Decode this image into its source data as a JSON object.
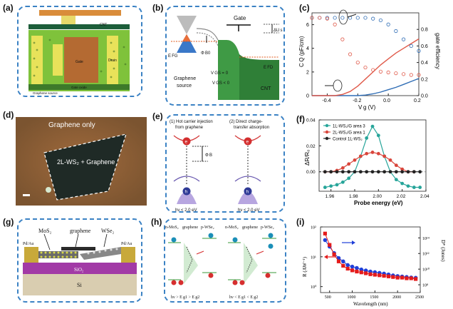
{
  "panels": {
    "a": {
      "label": "(a)",
      "cnt": "CNT",
      "gate": "Gate",
      "drain": "Drain",
      "gate_oxide": "Gate oxide",
      "graphene_source": "Graphene source"
    },
    "b": {
      "label": "(b)",
      "gate": "Gate",
      "efg": "E FG",
      "phi_b0": "Φ B0",
      "du": "ΔU s",
      "efd": "E FD",
      "vgs0": "V GS = 0",
      "vgs_neg": "V GS < 0",
      "graphene": "Graphene",
      "source": "source",
      "cnt": "CNT"
    },
    "c": {
      "label": "(c)"
    },
    "d": {
      "label": "(d)",
      "graphene_only": "Graphene only",
      "region": "2L-WS₂ + Graphene"
    },
    "e": {
      "label": "(e)",
      "mech1_line1": "(1) Hot carrier injection",
      "mech1_line2": "from graphene",
      "mech2_line1": "(2) Direct charge-",
      "mech2_line2": "transfer absorption",
      "phi_b": "Φ B",
      "hv1": "hν < 2.0 eV",
      "hv2": "hν < 2.0 eV",
      "e_char": "e",
      "h_char": "h"
    },
    "f": {
      "label": "(f)"
    },
    "g": {
      "label": "(g)",
      "mos2": "MoS₂",
      "graphene": "graphene",
      "wse2": "WSe₂",
      "pd_au_left": "Pd/Au",
      "pd_au_right": "Pd/Au",
      "sio2": "SiO₂",
      "si": "Si"
    },
    "h": {
      "label": "(h)",
      "l1": "n-MoS₂",
      "l2": "graphene",
      "l3": "p-WSe₂",
      "r1": "n-MoS₂",
      "r2": "graphene",
      "r3": "p-WSe₂",
      "eq1": "hν > E g1 > E g2",
      "eq2": "hν < E g1 < E g2"
    },
    "i": {
      "label": "(i)"
    }
  },
  "chart_data": [
    {
      "id": "c",
      "type": "scatter",
      "xlabel": "V g (V)",
      "ylabel": "C Q (pF/cm)",
      "y2label": "gate efficiency",
      "xlim": [
        -0.5,
        0.2
      ],
      "ylim": [
        0,
        7
      ],
      "y2lim": [
        0,
        1.0
      ],
      "xticks": [
        "-0.4",
        "-0.2",
        "0.0",
        "0.2"
      ],
      "yticks": [
        "0",
        "2",
        "4",
        "6"
      ],
      "y2ticks": [
        "0.0",
        "0.2",
        "0.4",
        "0.6",
        "0.8"
      ],
      "series": [
        {
          "color": "#2f6db5",
          "axis": "left",
          "x": [
            -0.5,
            -0.45,
            -0.4,
            -0.35,
            -0.3,
            -0.25,
            -0.2,
            -0.15,
            -0.1,
            -0.05,
            0.0,
            0.05,
            0.1,
            0.15,
            0.2
          ],
          "y": [
            0,
            0,
            0,
            0,
            0,
            0,
            0,
            0.05,
            0.15,
            0.3,
            0.5,
            0.7,
            0.95,
            1.2,
            1.45
          ]
        },
        {
          "color": "#e05a4a",
          "axis": "left",
          "x": [
            -0.5,
            -0.45,
            -0.4,
            -0.35,
            -0.3,
            -0.25,
            -0.2,
            -0.15,
            -0.1,
            -0.05,
            0.0,
            0.05,
            0.1,
            0.15,
            0.2
          ],
          "y": [
            0,
            0,
            0,
            0,
            0.1,
            0.35,
            0.8,
            1.4,
            2.0,
            2.6,
            3.1,
            3.6,
            4.0,
            4.4,
            4.8
          ]
        },
        {
          "color": "#2f6db5",
          "axis": "right",
          "x": [
            -0.5,
            -0.45,
            -0.4,
            -0.35,
            -0.3,
            -0.25,
            -0.2,
            -0.15,
            -0.1,
            -0.05,
            0.0,
            0.05,
            0.1,
            0.15,
            0.2
          ],
          "y": [
            0.94,
            0.94,
            0.94,
            0.94,
            0.94,
            0.94,
            0.94,
            0.94,
            0.93,
            0.91,
            0.86,
            0.78,
            0.68,
            0.6,
            0.54
          ]
        },
        {
          "color": "#e05a4a",
          "axis": "right",
          "x": [
            -0.5,
            -0.45,
            -0.4,
            -0.35,
            -0.3,
            -0.25,
            -0.2,
            -0.15,
            -0.1,
            -0.05,
            0.0,
            0.05,
            0.1,
            0.15,
            0.2
          ],
          "y": [
            0.94,
            0.94,
            0.93,
            0.86,
            0.68,
            0.5,
            0.4,
            0.34,
            0.31,
            0.29,
            0.28,
            0.27,
            0.26,
            0.25,
            0.25
          ]
        }
      ]
    },
    {
      "id": "f",
      "type": "line",
      "xlabel": "Probe energy (eV)",
      "ylabel": "ΔR/R₀",
      "xlim": [
        1.95,
        2.04
      ],
      "ylim": [
        -0.015,
        0.04
      ],
      "xticks": [
        "1.96",
        "1.98",
        "2.00",
        "2.02",
        "2.04"
      ],
      "yticks": [
        "0.00",
        "0.02",
        "0.04"
      ],
      "legend": "top-left",
      "series": [
        {
          "name": "1L-WS₂/G area 3",
          "color": "#27a59a",
          "x": [
            1.955,
            1.96,
            1.965,
            1.97,
            1.975,
            1.98,
            1.985,
            1.99,
            1.995,
            2.0,
            2.005,
            2.01,
            2.015,
            2.02,
            2.025,
            2.03,
            2.035
          ],
          "y": [
            -0.012,
            -0.011,
            -0.01,
            -0.008,
            -0.005,
            0.0,
            0.012,
            0.026,
            0.035,
            0.028,
            0.012,
            0.0,
            -0.006,
            -0.009,
            -0.011,
            -0.012,
            -0.012
          ]
        },
        {
          "name": "2L-WS₂/G area 1",
          "color": "#d9453b",
          "x": [
            1.955,
            1.96,
            1.965,
            1.97,
            1.975,
            1.98,
            1.985,
            1.99,
            1.995,
            2.0,
            2.005,
            2.01,
            2.015,
            2.02,
            2.025,
            2.03
          ],
          "y": [
            0.0,
            0.0,
            0.001,
            0.003,
            0.006,
            0.009,
            0.012,
            0.014,
            0.015,
            0.014,
            0.012,
            0.009,
            0.005,
            0.002,
            0.0,
            0.0
          ]
        },
        {
          "name": "Control 1L-WS₂",
          "color": "#222222",
          "x": [
            1.955,
            1.96,
            1.965,
            1.97,
            1.975,
            1.98,
            1.985,
            1.99,
            1.995,
            2.0,
            2.005,
            2.01,
            2.015,
            2.02,
            2.025,
            2.03,
            2.035
          ],
          "y": [
            0,
            0,
            0,
            0,
            0,
            0,
            0,
            0,
            0,
            0,
            0,
            0,
            0,
            0,
            0,
            0,
            0
          ]
        }
      ]
    },
    {
      "id": "i",
      "type": "scatter",
      "xlabel": "Wavelength (nm)",
      "ylabel": "R (AW⁻¹)",
      "y2label": "D* (Jones)",
      "xlim": [
        300,
        2500
      ],
      "xticks": [
        "500",
        "1000",
        "1500",
        "2000",
        "2500"
      ],
      "yticks": [
        "10⁰",
        "10¹",
        "10²"
      ],
      "y2ticks": [
        "10⁸",
        "10¹⁰",
        "10¹²",
        "10¹⁴"
      ],
      "ylog": true,
      "series": [
        {
          "color": "#1f3fd8",
          "axis": "right",
          "x": [
            400,
            500,
            600,
            700,
            800,
            900,
            1000,
            1100,
            1200,
            1300,
            1400,
            1500,
            1600,
            1700,
            1800,
            1900,
            2000,
            2100,
            2200,
            2300,
            2400
          ],
          "y": [
            50000000000000.0,
            20000000000000.0,
            8000000000000.0,
            4000000000000.0,
            2500000000000.0,
            1500000000000.0,
            1200000000000.0,
            1000000000000.0,
            800000000000.0,
            700000000000.0,
            600000000000.0,
            550000000000.0,
            500000000000.0,
            450000000000.0,
            400000000000.0,
            350000000000.0,
            320000000000.0,
            300000000000.0,
            280000000000.0,
            260000000000.0,
            250000000000.0
          ]
        },
        {
          "color": "#e41b1b",
          "axis": "left",
          "x": [
            400,
            500,
            600,
            700,
            800,
            900,
            1000,
            1100,
            1200,
            1300,
            1400,
            1500,
            1600,
            1700,
            1800,
            1900,
            2000,
            2100,
            2200,
            2300,
            2400
          ],
          "y": [
            60,
            25,
            12,
            7,
            5,
            4,
            3.5,
            3.2,
            3,
            2.8,
            2.6,
            2.5,
            2.4,
            2.3,
            2.2,
            2.1,
            2.0,
            2.0,
            1.9,
            1.9,
            1.8
          ]
        }
      ]
    }
  ]
}
